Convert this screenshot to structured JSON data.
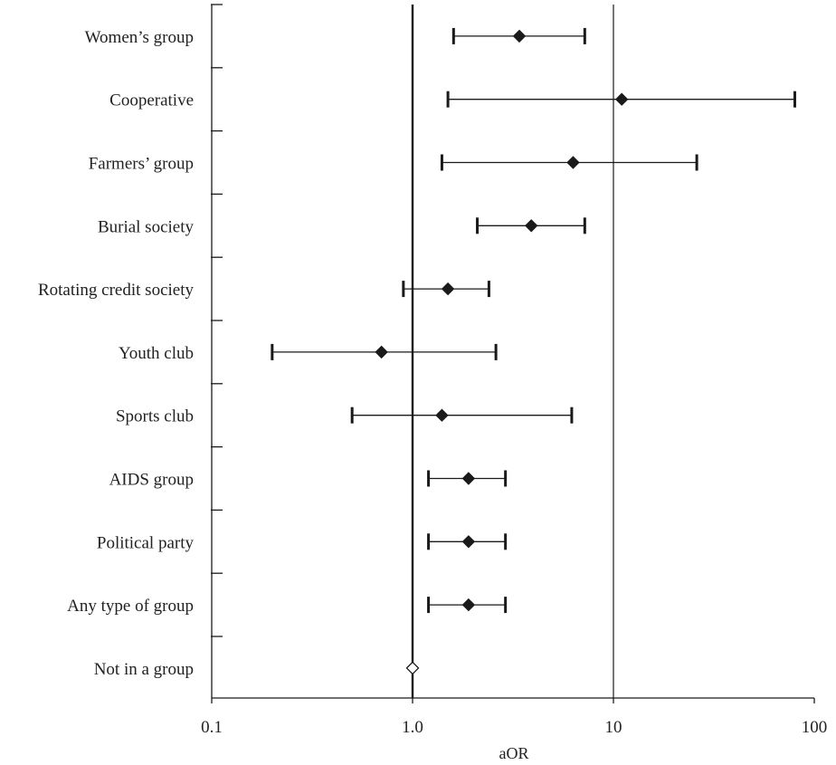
{
  "chart_data": {
    "type": "forest",
    "xscale": "log",
    "xlim": [
      0.1,
      100
    ],
    "xticks": [
      {
        "value": 0.1,
        "label": "0.1"
      },
      {
        "value": 1,
        "label": "1.0"
      },
      {
        "value": 10,
        "label": "10"
      },
      {
        "value": 100,
        "label": "100"
      }
    ],
    "xlabel": "aOR",
    "reference_line": 1,
    "gridlines_x": [
      10
    ],
    "grid": false,
    "colors": {
      "marker": "#1a1a1a",
      "axis": "#1a1a1a",
      "reference_marker_fill": "#ffffff"
    },
    "rows": [
      {
        "label": "Women’s group",
        "estimate": 3.4,
        "lower": 1.6,
        "upper": 7.2
      },
      {
        "label": "Cooperative",
        "estimate": 11,
        "lower": 1.5,
        "upper": 80
      },
      {
        "label": "Farmers’ group",
        "estimate": 6.3,
        "lower": 1.4,
        "upper": 26
      },
      {
        "label": "Burial society",
        "estimate": 3.9,
        "lower": 2.1,
        "upper": 7.2
      },
      {
        "label": "Rotating credit society",
        "estimate": 1.5,
        "lower": 0.9,
        "upper": 2.4
      },
      {
        "label": "Youth club",
        "estimate": 0.7,
        "lower": 0.2,
        "upper": 2.6
      },
      {
        "label": "Sports club",
        "estimate": 1.4,
        "lower": 0.5,
        "upper": 6.2
      },
      {
        "label": "AIDS group",
        "estimate": 1.9,
        "lower": 1.2,
        "upper": 2.9
      },
      {
        "label": "Political party",
        "estimate": 1.9,
        "lower": 1.2,
        "upper": 2.9
      },
      {
        "label": "Any type of group",
        "estimate": 1.9,
        "lower": 1.2,
        "upper": 2.9
      },
      {
        "label": "Not in a group",
        "estimate": 1,
        "lower": null,
        "upper": null,
        "reference": true
      }
    ]
  }
}
